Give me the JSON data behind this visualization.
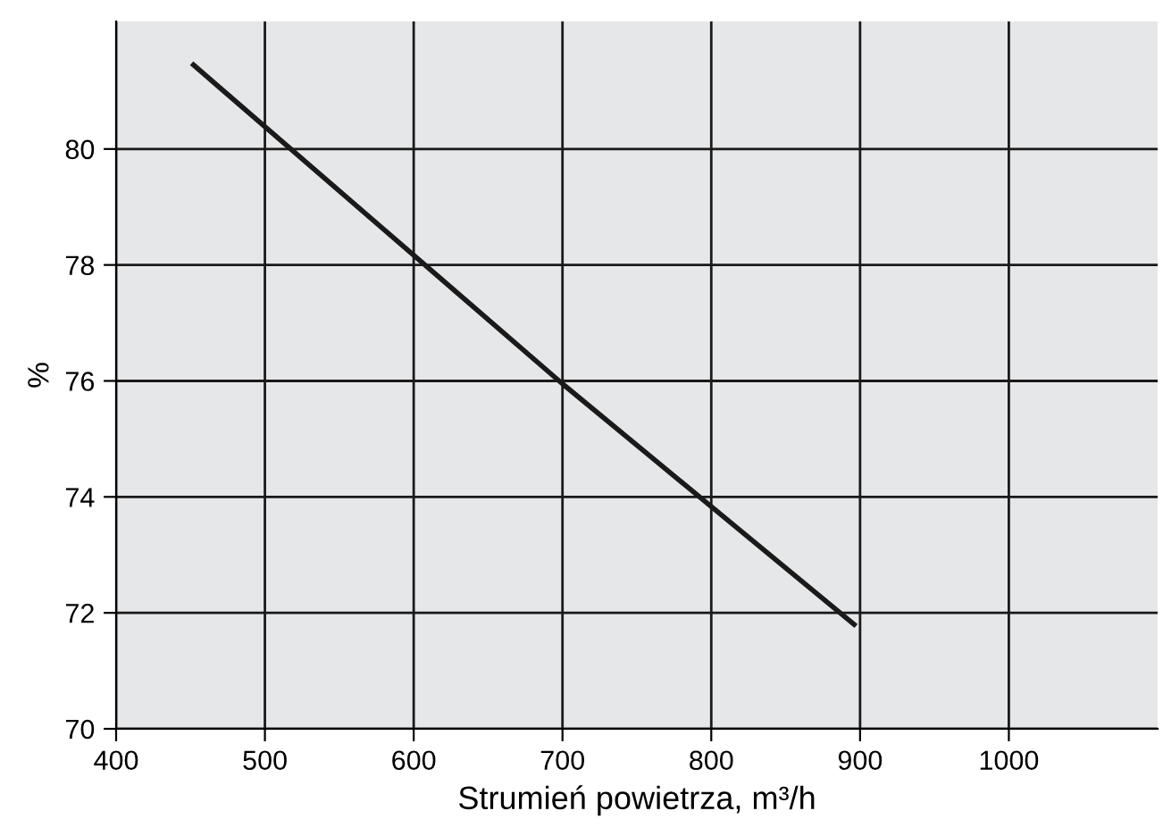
{
  "chart_data": {
    "type": "line",
    "xlabel": "Strumień powietrza, m³/h",
    "ylabel": "%",
    "x": [
      452,
      700,
      896
    ],
    "series": [
      {
        "color": "#1a1a1a",
        "values": [
          81.45,
          75.95,
          71.8
        ]
      }
    ],
    "xlim": [
      400,
      1100
    ],
    "xticks": [
      400,
      500,
      600,
      700,
      800,
      900,
      1000
    ],
    "ylim": [
      70,
      82.2
    ],
    "yticks": [
      70,
      72,
      74,
      76,
      78,
      80
    ],
    "grid": true,
    "marker": "none",
    "line_style": "solid"
  }
}
